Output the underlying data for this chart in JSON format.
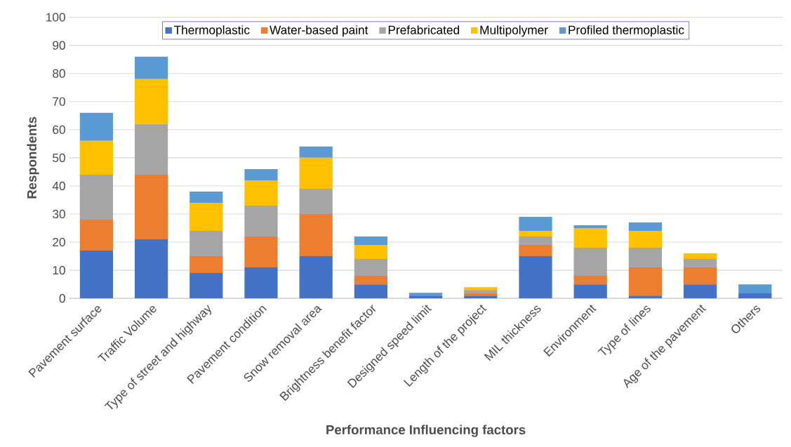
{
  "chart_data": {
    "type": "bar",
    "stacked": true,
    "xlabel": "Performance Influencing factors",
    "ylabel": "Respondents",
    "categories": [
      "Pavement surface",
      "Traffic Volume",
      "Type of street and highway",
      "Pavement condition",
      "Snow removal area",
      "Brightness benefit factor",
      "Designed speed limit",
      "Length of the project",
      "MIL thickness",
      "Environment",
      "Type of lines",
      "Age of the pavement",
      "Others"
    ],
    "series": [
      {
        "name": "Thermoplastic",
        "color": "#4472c4",
        "values": [
          17,
          21,
          9,
          11,
          15,
          5,
          1,
          1,
          15,
          5,
          1,
          5,
          2
        ]
      },
      {
        "name": "Water-based paint",
        "color": "#ed7d31",
        "values": [
          11,
          23,
          6,
          11,
          15,
          3,
          0,
          1,
          4,
          3,
          10,
          6,
          0
        ]
      },
      {
        "name": "Prefabricated",
        "color": "#a5a5a5",
        "values": [
          16,
          18,
          9,
          11,
          9,
          6,
          0,
          1,
          3,
          10,
          7,
          3,
          0
        ]
      },
      {
        "name": "Multipolymer",
        "color": "#ffc000",
        "values": [
          12,
          16,
          10,
          9,
          11,
          5,
          0,
          1,
          2,
          7,
          6,
          2,
          0
        ]
      },
      {
        "name": "Profiled thermoplastic",
        "color": "#5b9bd5",
        "values": [
          10,
          8,
          4,
          4,
          4,
          3,
          1,
          0,
          5,
          1,
          3,
          0,
          3
        ]
      }
    ],
    "ylim": [
      0,
      100
    ],
    "yticks": [
      0,
      10,
      20,
      30,
      40,
      50,
      60,
      70,
      80,
      90,
      100
    ],
    "grid": "y",
    "legend": "top"
  }
}
